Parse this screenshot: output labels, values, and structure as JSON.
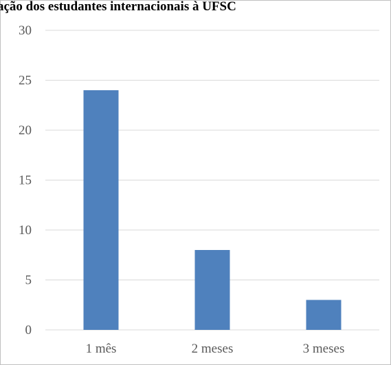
{
  "chart_data": {
    "type": "bar",
    "title": "ação dos estudantes internacionais à UFSC",
    "categories": [
      "1 mês",
      "2 meses",
      "3 meses"
    ],
    "values": [
      24,
      8,
      3
    ],
    "ylim": [
      0,
      30
    ],
    "yticks": [
      0,
      5,
      10,
      15,
      20,
      25,
      30
    ],
    "grid": true,
    "legend": "none",
    "colors": {
      "bar": "#4f81bd",
      "grid": "#d9d9d9",
      "tick_text": "#595959",
      "border": "#bfbfbf"
    }
  }
}
